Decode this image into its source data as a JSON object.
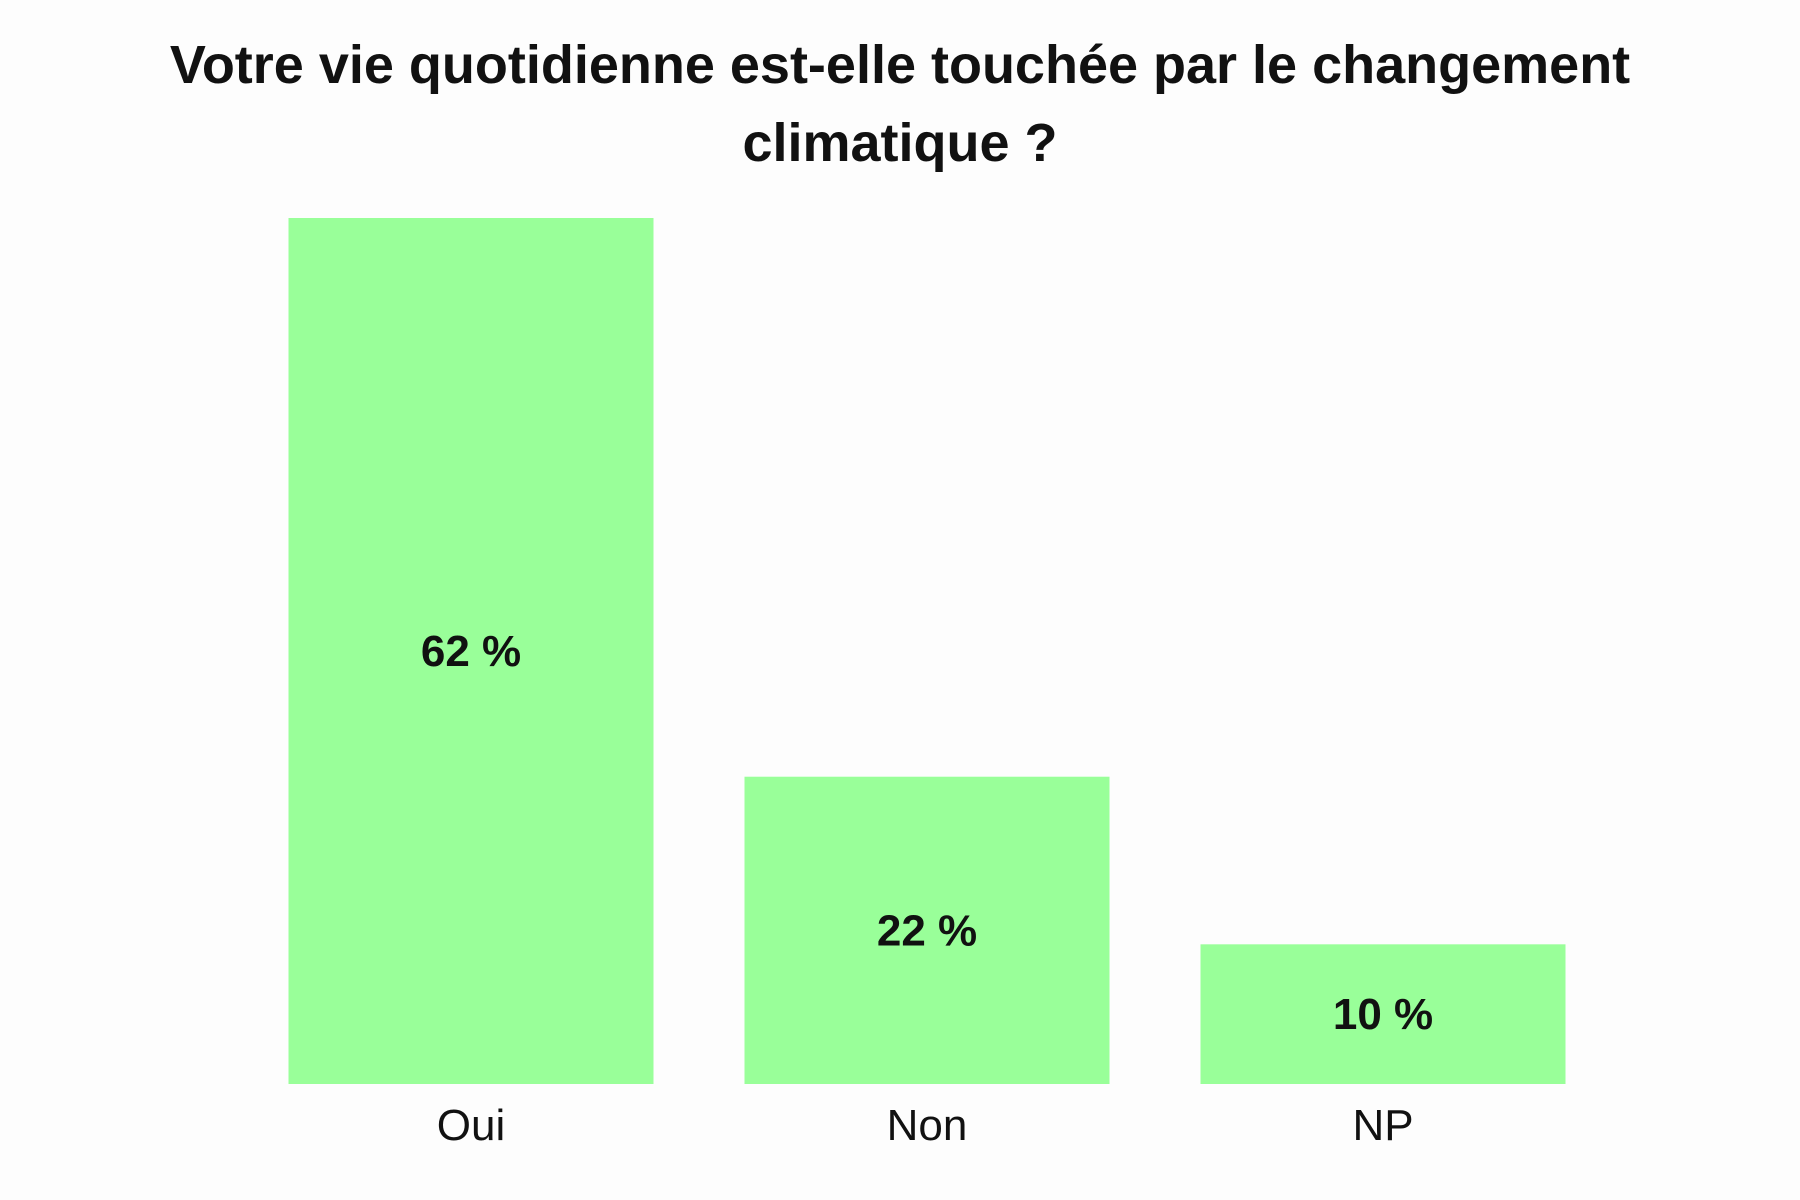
{
  "chart_data": {
    "type": "bar",
    "title": "Votre vie quotidienne est-elle touchée par le changement climatique ?",
    "categories": [
      "Oui",
      "Non",
      "NP"
    ],
    "values": [
      62,
      22,
      10
    ],
    "value_labels": [
      "62 %",
      "22 %",
      "10 %"
    ],
    "xlabel": "",
    "ylabel": "",
    "ylim": [
      0,
      62
    ],
    "grid": false,
    "legend": "none",
    "bar_color": "#99ff99",
    "label_color": "#111111"
  }
}
